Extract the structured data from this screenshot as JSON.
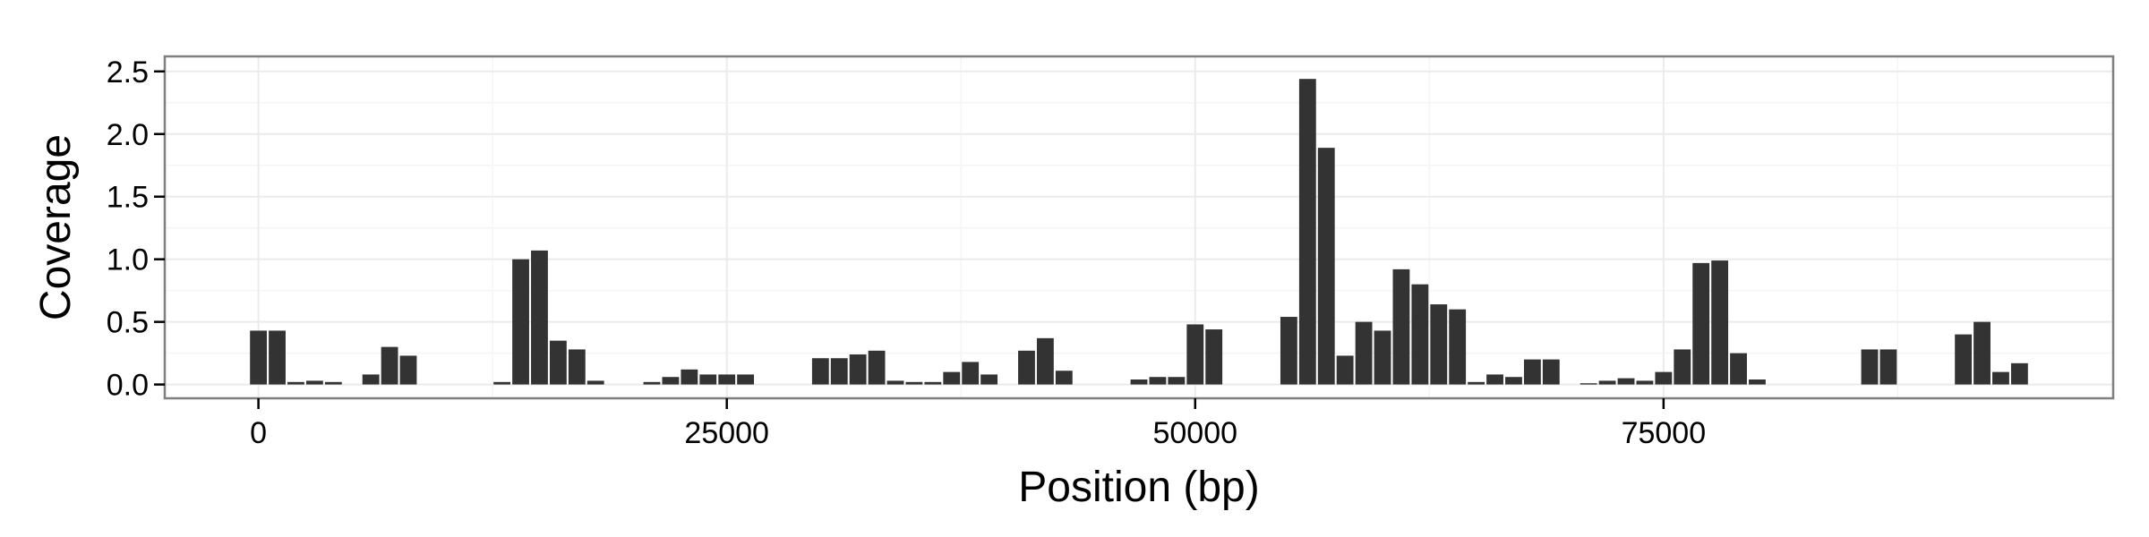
{
  "chart_data": {
    "type": "bar",
    "title": "",
    "xlabel": "Position (bp)",
    "ylabel": "Coverage",
    "xlim": [
      -5000,
      99000
    ],
    "ylim": [
      -0.11,
      2.62
    ],
    "bin_width": 1000,
    "grid": true,
    "legend": "none",
    "x_ticks": [
      0,
      25000,
      50000,
      75000
    ],
    "x_tick_labels": [
      "0",
      "25000",
      "50000",
      "75000"
    ],
    "y_ticks": [
      0.0,
      0.5,
      1.0,
      1.5,
      2.0,
      2.5
    ],
    "y_tick_labels": [
      "0.0",
      "0.5",
      "1.0",
      "1.5",
      "2.0",
      "2.5"
    ],
    "colors": {
      "bar": "#333333",
      "panel_bg": "#ffffff",
      "grid_major": "#ebebeb",
      "grid_minor": "#f5f5f5",
      "panel_border": "#7f7f7f",
      "tick": "#000000"
    },
    "x": [
      0,
      1000,
      2000,
      3000,
      4000,
      6000,
      7000,
      8000,
      13000,
      14000,
      15000,
      16000,
      17000,
      18000,
      21000,
      22000,
      23000,
      24000,
      25000,
      26000,
      30000,
      31000,
      32000,
      33000,
      34000,
      35000,
      36000,
      37000,
      38000,
      39000,
      41000,
      42000,
      43000,
      47000,
      48000,
      49000,
      50000,
      51000,
      55000,
      56000,
      57000,
      58000,
      59000,
      60000,
      61000,
      62000,
      63000,
      64000,
      65000,
      66000,
      67000,
      68000,
      69000,
      71000,
      72000,
      73000,
      74000,
      75000,
      76000,
      77000,
      78000,
      79000,
      80000,
      86000,
      87000,
      91000,
      92000,
      93000,
      94000
    ],
    "values": [
      0.43,
      0.43,
      0.02,
      0.03,
      0.02,
      0.08,
      0.3,
      0.23,
      0.02,
      1.0,
      1.07,
      0.35,
      0.28,
      0.03,
      0.02,
      0.06,
      0.12,
      0.08,
      0.08,
      0.08,
      0.21,
      0.21,
      0.24,
      0.27,
      0.03,
      0.02,
      0.02,
      0.1,
      0.18,
      0.08,
      0.27,
      0.37,
      0.11,
      0.04,
      0.06,
      0.06,
      0.48,
      0.44,
      0.54,
      2.44,
      1.89,
      0.23,
      0.5,
      0.43,
      0.92,
      0.8,
      0.64,
      0.6,
      0.02,
      0.08,
      0.06,
      0.2,
      0.2,
      0.01,
      0.03,
      0.05,
      0.03,
      0.1,
      0.28,
      0.97,
      0.99,
      0.25,
      0.04,
      0.28,
      0.28,
      0.4,
      0.5,
      0.1,
      0.17
    ]
  }
}
